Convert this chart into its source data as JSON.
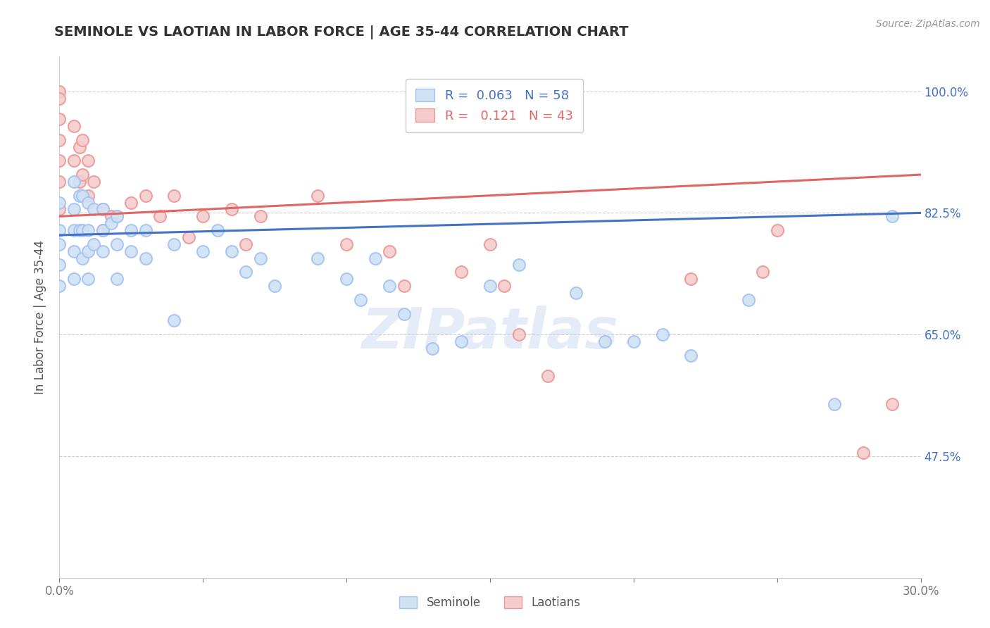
{
  "title": "SEMINOLE VS LAOTIAN IN LABOR FORCE | AGE 35-44 CORRELATION CHART",
  "source_text": "Source: ZipAtlas.com",
  "ylabel": "In Labor Force | Age 35-44",
  "xlim": [
    0.0,
    0.3
  ],
  "ylim": [
    0.3,
    1.05
  ],
  "ytick_labels_right": [
    "47.5%",
    "65.0%",
    "82.5%",
    "100.0%"
  ],
  "ytick_positions_right": [
    0.475,
    0.65,
    0.825,
    1.0
  ],
  "blue_color": "#a4c2f4",
  "pink_color": "#ea9999",
  "blue_line_color": "#4472c4",
  "pink_line_color": "#e06666",
  "blue_fill": "#cfe2f3",
  "pink_fill": "#f4cccc",
  "watermark": "ZIPatlas",
  "background_color": "#ffffff",
  "grid_color": "#cccccc",
  "seminole_x": [
    0.0,
    0.0,
    0.0,
    0.0,
    0.0,
    0.005,
    0.005,
    0.005,
    0.005,
    0.005,
    0.007,
    0.007,
    0.008,
    0.008,
    0.008,
    0.01,
    0.01,
    0.01,
    0.01,
    0.012,
    0.012,
    0.015,
    0.015,
    0.015,
    0.018,
    0.02,
    0.02,
    0.02,
    0.025,
    0.025,
    0.03,
    0.03,
    0.04,
    0.04,
    0.05,
    0.055,
    0.06,
    0.065,
    0.07,
    0.075,
    0.09,
    0.1,
    0.105,
    0.11,
    0.115,
    0.12,
    0.13,
    0.14,
    0.15,
    0.16,
    0.18,
    0.19,
    0.2,
    0.21,
    0.22,
    0.24,
    0.27,
    0.29
  ],
  "seminole_y": [
    0.84,
    0.8,
    0.78,
    0.75,
    0.72,
    0.87,
    0.83,
    0.8,
    0.77,
    0.73,
    0.85,
    0.8,
    0.85,
    0.8,
    0.76,
    0.84,
    0.8,
    0.77,
    0.73,
    0.83,
    0.78,
    0.83,
    0.8,
    0.77,
    0.81,
    0.82,
    0.78,
    0.73,
    0.8,
    0.77,
    0.8,
    0.76,
    0.78,
    0.67,
    0.77,
    0.8,
    0.77,
    0.74,
    0.76,
    0.72,
    0.76,
    0.73,
    0.7,
    0.76,
    0.72,
    0.68,
    0.63,
    0.64,
    0.72,
    0.75,
    0.71,
    0.64,
    0.64,
    0.65,
    0.62,
    0.7,
    0.55,
    0.82
  ],
  "laotian_x": [
    0.0,
    0.0,
    0.0,
    0.0,
    0.0,
    0.0,
    0.0,
    0.005,
    0.005,
    0.007,
    0.007,
    0.008,
    0.008,
    0.01,
    0.01,
    0.012,
    0.015,
    0.015,
    0.018,
    0.02,
    0.025,
    0.03,
    0.035,
    0.04,
    0.045,
    0.05,
    0.06,
    0.065,
    0.07,
    0.09,
    0.1,
    0.115,
    0.12,
    0.14,
    0.15,
    0.155,
    0.16,
    0.17,
    0.22,
    0.245,
    0.25,
    0.28,
    0.29
  ],
  "laotian_y": [
    1.0,
    0.99,
    0.96,
    0.93,
    0.9,
    0.87,
    0.83,
    0.95,
    0.9,
    0.92,
    0.87,
    0.93,
    0.88,
    0.9,
    0.85,
    0.87,
    0.83,
    0.8,
    0.82,
    0.82,
    0.84,
    0.85,
    0.82,
    0.85,
    0.79,
    0.82,
    0.83,
    0.78,
    0.82,
    0.85,
    0.78,
    0.77,
    0.72,
    0.74,
    0.78,
    0.72,
    0.65,
    0.59,
    0.73,
    0.74,
    0.8,
    0.48,
    0.55
  ],
  "blue_trend_x0": 0.0,
  "blue_trend_y0": 0.793,
  "blue_trend_x1": 0.3,
  "blue_trend_y1": 0.825,
  "pink_trend_x0": 0.0,
  "pink_trend_y0": 0.82,
  "pink_trend_x1": 0.3,
  "pink_trend_y1": 0.88
}
